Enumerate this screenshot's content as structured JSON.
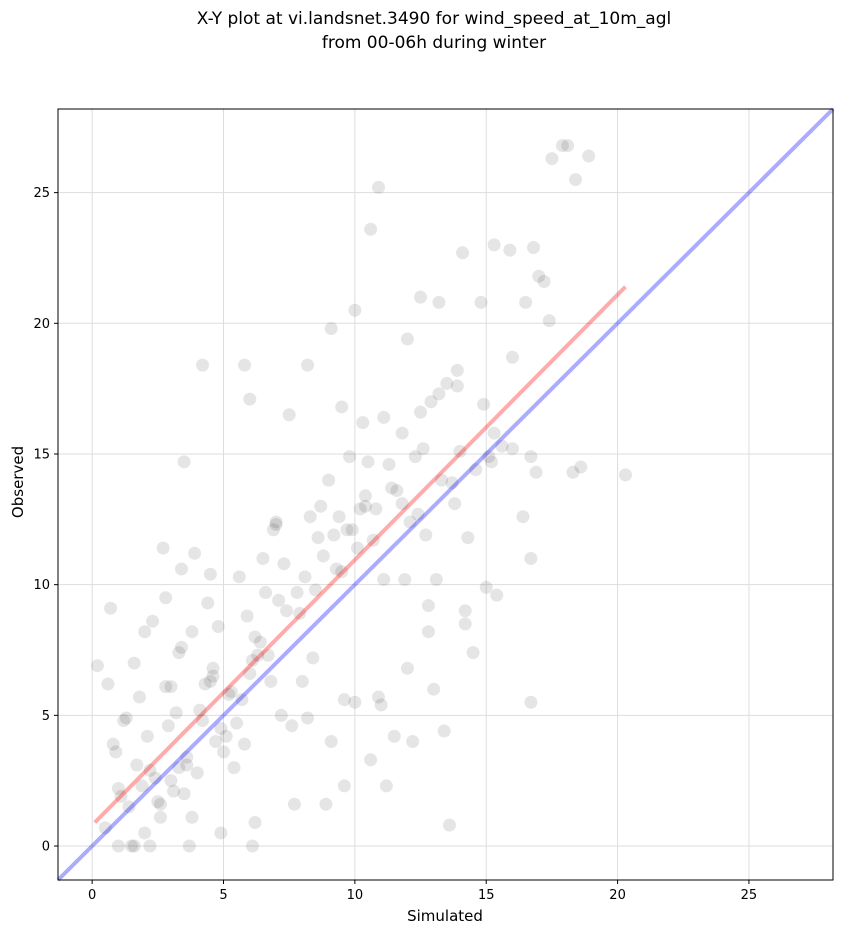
{
  "chart_data": {
    "type": "scatter",
    "title": "X-Y plot at vi.landsnet.3490 for wind_speed_at_10m_agl",
    "subtitle": "from 00-06h during winter",
    "xlabel": "Simulated",
    "ylabel": "Observed",
    "xlim": [
      -1.3,
      28.2
    ],
    "ylim": [
      -1.3,
      28.2
    ],
    "xticks": [
      0,
      5,
      10,
      15,
      20,
      25
    ],
    "yticks": [
      0,
      5,
      10,
      15,
      20,
      25
    ],
    "grid": true,
    "colors": {
      "points": "#000000",
      "fit_line": "#ff0000",
      "one_to_one_line": "#0000ff"
    },
    "fit_line": {
      "x": [
        0.1,
        20.3
      ],
      "y": [
        0.9,
        21.4
      ]
    },
    "one_to_one_line": {
      "x": [
        -1.3,
        28.2
      ],
      "y": [
        -1.3,
        28.2
      ]
    },
    "series": [
      {
        "x": [
          5.1,
          6.1,
          4.2,
          4.9,
          6.0,
          3.5,
          10.6,
          10.9,
          15.3,
          15.9,
          16.8,
          17.9,
          18.1,
          17.5,
          18.9,
          17.0,
          16.5,
          17.2,
          20.3,
          18.4,
          18.3,
          18.6,
          12.0,
          12.5,
          13.2,
          14.1,
          13.5,
          14.8,
          11.8,
          12.9,
          10.0,
          9.5,
          8.2,
          9.1,
          7.5,
          7.0,
          6.5,
          5.8,
          15.4,
          16.0,
          16.7,
          16.4,
          16.9,
          15.1,
          14.2,
          13.8,
          12.8,
          15.0,
          14.5,
          13.6,
          16.7,
          13.0,
          11.0,
          10.0,
          9.6,
          8.9,
          14.2,
          11.5,
          12.2,
          13.4,
          10.6,
          11.2,
          10.4,
          9.8,
          10.3,
          9.2,
          8.5,
          7.3,
          6.8,
          6.2,
          5.5,
          4.6,
          4.1,
          3.6,
          3.0,
          2.5,
          2.0,
          1.5,
          1.0,
          0.5,
          0.8,
          1.2,
          1.8,
          2.2,
          2.8,
          3.3,
          3.8,
          4.4,
          5.0,
          5.6,
          6.3,
          6.9,
          7.6,
          8.3,
          9.0,
          9.7,
          10.4,
          11.1,
          11.8,
          12.5,
          13.2,
          13.9,
          14.6,
          15.3,
          16.0,
          16.7,
          17.4,
          3.1,
          3.5,
          2.6,
          4.0,
          3.3,
          2.9,
          3.8,
          4.6,
          3.0,
          2.1,
          1.7,
          1.3,
          0.9,
          2.4,
          3.6,
          4.3,
          5.2,
          6.1,
          5.7,
          4.8,
          6.6,
          7.4,
          8.1,
          8.8,
          9.4,
          10.1,
          10.8,
          11.4,
          12.1,
          12.7,
          13.3,
          14.0,
          0.2,
          0.6,
          1.1,
          1.6,
          2.7,
          3.4,
          4.7,
          5.3,
          6.4,
          7.1,
          7.8,
          8.6,
          9.3,
          10.2,
          11.3,
          12.4,
          13.7,
          14.9,
          15.6,
          2.3,
          2.8,
          3.9,
          4.5,
          5.9,
          6.7,
          7.9,
          8.7,
          9.9,
          10.5,
          11.6,
          12.3,
          13.1,
          14.3,
          15.2,
          1.4,
          1.9,
          2.6,
          3.2,
          4.2,
          5.4,
          6.0,
          7.2,
          8.0,
          8.4,
          9.5,
          10.7,
          11.9,
          12.6,
          13.9,
          1.0,
          1.6,
          2.2,
          3.7,
          4.9,
          6.2,
          7.7,
          9.1,
          10.9,
          12.0,
          0.7,
          2.0,
          3.4,
          4.5,
          5.8,
          7.0,
          8.2,
          9.6,
          11.1,
          12.8
        ],
        "y": [
          4.2,
          0.0,
          18.4,
          4.5,
          17.1,
          14.7,
          23.6,
          25.2,
          23.0,
          22.8,
          22.9,
          26.8,
          26.8,
          26.3,
          26.4,
          21.8,
          20.8,
          21.6,
          14.2,
          25.5,
          14.3,
          14.5,
          19.4,
          21.0,
          20.8,
          22.7,
          17.7,
          20.8,
          15.8,
          17.0,
          20.5,
          16.8,
          18.4,
          19.8,
          16.5,
          12.4,
          11.0,
          18.4,
          9.6,
          15.2,
          5.5,
          12.6,
          14.3,
          14.9,
          9.0,
          13.1,
          8.2,
          9.9,
          7.4,
          0.8,
          11.0,
          6.0,
          5.4,
          5.5,
          2.3,
          1.6,
          8.5,
          4.2,
          4.0,
          4.4,
          3.3,
          2.3,
          13.0,
          14.9,
          16.2,
          11.9,
          9.8,
          10.8,
          6.3,
          8.0,
          4.7,
          6.5,
          5.2,
          3.4,
          2.5,
          1.7,
          0.5,
          0.0,
          2.2,
          0.7,
          3.9,
          4.8,
          5.7,
          2.9,
          6.1,
          7.4,
          8.2,
          9.3,
          3.6,
          10.3,
          7.3,
          12.1,
          4.6,
          12.6,
          14.0,
          12.1,
          13.4,
          16.4,
          13.1,
          16.6,
          17.3,
          18.2,
          14.4,
          15.8,
          18.7,
          14.9,
          20.1,
          2.1,
          2.0,
          1.6,
          2.8,
          3.0,
          4.6,
          1.1,
          6.8,
          6.1,
          4.2,
          3.1,
          4.9,
          3.6,
          2.6,
          3.1,
          6.2,
          5.8,
          7.1,
          5.6,
          8.4,
          9.7,
          9.0,
          10.3,
          11.1,
          12.6,
          11.4,
          12.9,
          13.7,
          12.4,
          11.9,
          14.0,
          15.1,
          6.9,
          6.2,
          1.9,
          7.0,
          11.4,
          10.6,
          4.0,
          5.9,
          7.8,
          9.4,
          9.7,
          11.8,
          10.6,
          12.9,
          14.6,
          12.7,
          13.9,
          16.9,
          15.3,
          8.6,
          9.5,
          11.2,
          10.4,
          8.8,
          7.3,
          8.9,
          13.0,
          12.1,
          14.7,
          13.6,
          14.9,
          10.2,
          11.8,
          14.7,
          1.5,
          2.3,
          1.1,
          5.1,
          4.8,
          3.0,
          6.6,
          5.0,
          6.3,
          7.2,
          10.5,
          11.7,
          10.2,
          15.2,
          17.6,
          0.0,
          0.0,
          0.0,
          0.0,
          0.5,
          0.9,
          1.6,
          4.0,
          5.7,
          6.8,
          9.1,
          8.2,
          7.6,
          6.3,
          3.9,
          12.3,
          4.9,
          5.6,
          10.2,
          9.2
        ]
      }
    ]
  }
}
